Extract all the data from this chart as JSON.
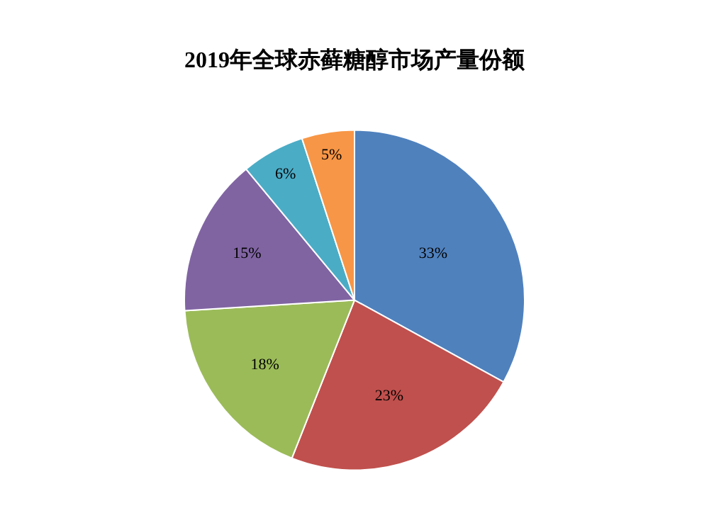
{
  "chart_data": {
    "type": "pie",
    "title": "2019年全球赤藓糖醇市场产量份额",
    "categories": [
      null,
      null,
      null,
      null,
      null,
      null
    ],
    "values": [
      33,
      23,
      18,
      15,
      6,
      5
    ],
    "value_labels": [
      "33%",
      "23%",
      "18%",
      "15%",
      "6%",
      "5%"
    ],
    "colors": [
      "#4f81bd",
      "#c0504d",
      "#9bbb59",
      "#8064a2",
      "#4bacc6",
      "#f79646"
    ],
    "legend": false
  }
}
